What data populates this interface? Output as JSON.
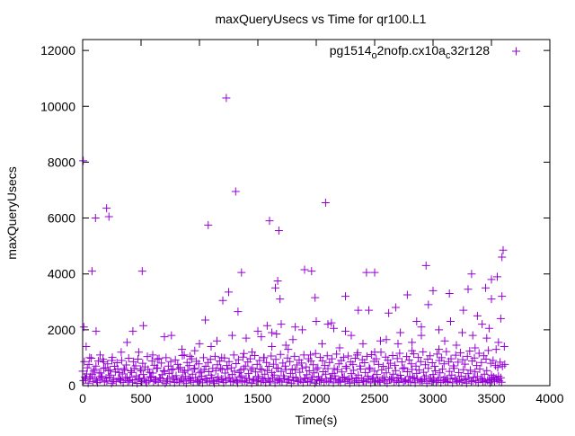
{
  "chart_data": {
    "type": "scatter",
    "title": "maxQueryUsecs vs Time for qr100.L1",
    "xlabel": "Time(s)",
    "ylabel": "maxQueryUsecs",
    "xlim": [
      0,
      4000
    ],
    "ylim": [
      0,
      12390
    ],
    "xticks": [
      0,
      500,
      1000,
      1500,
      2000,
      2500,
      3000,
      3500,
      4000
    ],
    "yticks": [
      0,
      2000,
      4000,
      6000,
      8000,
      10000,
      12000
    ],
    "grid": false,
    "legend_position": "top-right",
    "legend_parts": [
      "pg1514",
      "o",
      "2nofp.cx10a",
      "c",
      "32r128"
    ],
    "series": [
      {
        "name": "pg1514_o2nofp.cx10a_c32r128",
        "color": "#9400d3",
        "marker": "+",
        "dense_low": {
          "x_start": 0,
          "x_step": 20,
          "y_a": [
            520,
            310,
            640,
            250,
            410,
            580,
            190,
            460,
            330,
            620,
            270,
            540,
            380,
            150,
            490,
            600,
            230,
            420,
            560,
            300,
            180,
            470,
            610,
            350,
            260,
            530,
            400,
            170,
            580,
            320,
            450,
            210,
            630,
            280,
            390,
            510,
            160,
            440,
            570,
            240,
            360,
            600,
            200,
            480,
            330,
            550,
            270,
            410,
            620,
            190,
            460,
            340,
            580,
            250,
            500,
            380,
            170,
            540,
            310,
            620,
            230,
            450,
            590,
            280,
            400,
            520,
            180,
            470,
            350,
            610,
            260,
            430,
            560,
            200,
            490,
            330,
            600,
            270,
            410,
            540,
            160,
            470,
            380,
            630,
            240,
            510,
            350,
            580,
            210,
            440,
            300,
            560,
            190,
            480,
            620,
            270,
            390,
            530,
            230,
            460,
            580,
            320,
            180,
            500,
            410,
            610,
            260,
            440,
            350,
            570,
            200,
            490,
            310,
            620,
            240,
            430,
            550,
            280,
            380,
            600,
            170,
            470,
            340,
            590,
            250,
            520,
            400,
            180,
            560,
            300,
            460,
            630,
            220,
            410,
            540,
            290,
            370,
            610,
            190,
            500,
            330,
            580,
            260,
            440,
            560,
            210,
            480,
            350,
            620,
            270,
            400,
            530,
            180,
            460,
            590,
            310,
            240,
            510,
            380,
            620,
            200,
            470,
            340,
            570,
            260,
            430,
            550,
            180,
            490,
            320,
            600,
            250,
            410,
            540,
            220,
            380,
            300,
            260,
            340,
            280
          ],
          "y_b": [
            180,
            240,
            90,
            320,
            150,
            260,
            110,
            200,
            280,
            130,
            170,
            300,
            90,
            220,
            140,
            260,
            190,
            110,
            250,
            160,
            300,
            120,
            210,
            80,
            270,
            150,
            230,
            100,
            180,
            290,
            140,
            200,
            120,
            260,
            170,
            90,
            240,
            150,
            310,
            110,
            200,
            130,
            270,
            160,
            90,
            230,
            180,
            120,
            290,
            140,
            210,
            100,
            250,
            170,
            130,
            280,
            90,
            200,
            150,
            240,
            110,
            190,
            270,
            130,
            160,
            220,
            100,
            300,
            140,
            180,
            120,
            250,
            90,
            210,
            160,
            270,
            130,
            190,
            110,
            240,
            150,
            290,
            100,
            200,
            170,
            130,
            260,
            120,
            220,
            90,
            180,
            280,
            140,
            200,
            110,
            250,
            160,
            130,
            300,
            90,
            210,
            170,
            240,
            120,
            190,
            140,
            270,
            100,
            230,
            160,
            120,
            280,
            150,
            200,
            90,
            250,
            130,
            180,
            110,
            260,
            170,
            140,
            220,
            100,
            290,
            150,
            190,
            120,
            240,
            160,
            90,
            210,
            270,
            130,
            180,
            110,
            250,
            140,
            200,
            160,
            120,
            290,
            100,
            230,
            170,
            140,
            260,
            90,
            190,
            150,
            220,
            120,
            280,
            110,
            200,
            160,
            130,
            240,
            100,
            270,
            150,
            180,
            120,
            210,
            90,
            250,
            140,
            300,
            170,
            110,
            230,
            160,
            130,
            190,
            100,
            260,
            150,
            210,
            170,
            120
          ],
          "y_c": [
            860,
            420,
            760,
            980,
            520,
            700,
            880,
            450,
            940,
            640,
            780,
            560,
            1010,
            690,
            820,
            470,
            900,
            610,
            740,
            980,
            530,
            860,
            710,
            950,
            590,
            800,
            670,
            1040,
            480,
            880,
            730,
            620,
            970,
            810,
            540,
            1000,
            700,
            860,
            590,
            920,
            760,
            650,
            1080,
            540,
            830,
            720,
            960,
            600,
            870,
            780,
            510,
            1000,
            690,
            830,
            940,
            620,
            1050,
            750,
            880,
            580,
            990,
            720,
            860,
            640,
            1100,
            790,
            930,
            560,
            1020,
            700,
            850,
            960,
            630,
            1080,
            760,
            900,
            580,
            1000,
            830,
            690,
            1060,
            770,
            940,
            620,
            1120,
            810,
            700,
            990,
            860,
            600,
            1050,
            740,
            920,
            810,
            1100,
            670,
            960,
            880,
            750,
            1150,
            640,
            1010,
            890,
            720,
            1070,
            830,
            960,
            610,
            1130,
            780,
            900,
            1010,
            690,
            1060,
            850,
            760,
            980,
            1180,
            700,
            930,
            820,
            1050,
            640,
            1110,
            870,
            960,
            760,
            1200,
            690,
            1020,
            910,
            800,
            1080,
            730,
            970,
            1160,
            850,
            640,
            1040,
            920,
            780,
            1140,
            700,
            1010,
            860,
            1210,
            750,
            950,
            1070,
            820,
            690,
            1130,
            900,
            1000,
            780,
            1220,
            860,
            960,
            710,
            1090,
            840,
            1180,
            930,
            770,
            1050,
            1240,
            880,
            990,
            720,
            1160,
            830,
            1070,
            950,
            1260,
            800,
            900,
            720,
            650,
            840,
            700,
            760
          ]
        },
        "scattered": [
          [
            5,
            8050
          ],
          [
            10,
            2100
          ],
          [
            80,
            4100
          ],
          [
            110,
            6000
          ],
          [
            115,
            1950
          ],
          [
            205,
            6350
          ],
          [
            225,
            6050
          ],
          [
            510,
            4100
          ],
          [
            1075,
            5750
          ],
          [
            1230,
            10300
          ],
          [
            1310,
            6950
          ],
          [
            1360,
            4050
          ],
          [
            1600,
            5900
          ],
          [
            1680,
            5550
          ],
          [
            2080,
            6550
          ],
          [
            1670,
            3750
          ],
          [
            1650,
            3500
          ],
          [
            1690,
            3100
          ],
          [
            1900,
            4150
          ],
          [
            1960,
            4100
          ],
          [
            1990,
            3150
          ],
          [
            2430,
            4050
          ],
          [
            2500,
            4050
          ],
          [
            2940,
            4300
          ],
          [
            3500,
            3800
          ],
          [
            3550,
            3900
          ],
          [
            3590,
            4600
          ],
          [
            3600,
            4850
          ],
          [
            3330,
            4000
          ],
          [
            3140,
            3300
          ],
          [
            1200,
            3050
          ],
          [
            1250,
            3350
          ],
          [
            3590,
            3200
          ],
          [
            3000,
            3400
          ],
          [
            3450,
            3500
          ],
          [
            30,
            1400
          ],
          [
            60,
            1000
          ],
          [
            150,
            1100
          ],
          [
            250,
            900
          ],
          [
            330,
            1200
          ],
          [
            380,
            1550
          ],
          [
            430,
            1950
          ],
          [
            480,
            1200
          ],
          [
            520,
            2150
          ],
          [
            600,
            1100
          ],
          [
            700,
            1750
          ],
          [
            760,
            1800
          ],
          [
            850,
            1300
          ],
          [
            920,
            1050
          ],
          [
            1000,
            1500
          ],
          [
            1050,
            2350
          ],
          [
            1100,
            1400
          ],
          [
            1150,
            1600
          ],
          [
            1190,
            1000
          ],
          [
            1280,
            1800
          ],
          [
            1330,
            2650
          ],
          [
            1400,
            1700
          ],
          [
            1450,
            1200
          ],
          [
            1500,
            1950
          ],
          [
            1550,
            1000
          ],
          [
            1620,
            1900
          ],
          [
            1660,
            1850
          ],
          [
            1700,
            2200
          ],
          [
            1760,
            1300
          ],
          [
            1820,
            2100
          ],
          [
            1880,
            2000
          ],
          [
            1950,
            1100
          ],
          [
            2000,
            2300
          ],
          [
            2050,
            1500
          ],
          [
            2100,
            2200
          ],
          [
            2150,
            2050
          ],
          [
            2200,
            1350
          ],
          [
            2250,
            3200
          ],
          [
            2300,
            1800
          ],
          [
            2360,
            2700
          ],
          [
            2400,
            1500
          ],
          [
            2450,
            2700
          ],
          [
            2500,
            1200
          ],
          [
            2550,
            1600
          ],
          [
            2620,
            2600
          ],
          [
            2680,
            2800
          ],
          [
            2720,
            1900
          ],
          [
            2780,
            3250
          ],
          [
            2820,
            1550
          ],
          [
            2860,
            2300
          ],
          [
            2900,
            1800
          ],
          [
            2960,
            2900
          ],
          [
            3050,
            2000
          ],
          [
            3100,
            1600
          ],
          [
            3150,
            2300
          ],
          [
            3200,
            1450
          ],
          [
            3260,
            2700
          ],
          [
            3300,
            3450
          ],
          [
            3340,
            1800
          ],
          [
            3380,
            2500
          ],
          [
            3420,
            2200
          ],
          [
            3460,
            1700
          ],
          [
            3500,
            3100
          ],
          [
            3540,
            1300
          ],
          [
            3580,
            2400
          ],
          [
            3610,
            1400
          ],
          [
            1800,
            1650
          ],
          [
            2700,
            1500
          ],
          [
            3360,
            1350
          ],
          [
            870,
            1100
          ],
          [
            640,
            950
          ],
          [
            180,
            850
          ],
          [
            2820,
            1250
          ],
          [
            3050,
            1300
          ],
          [
            2350,
            1100
          ],
          [
            1530,
            1750
          ],
          [
            1580,
            2150
          ],
          [
            1620,
            1400
          ],
          [
            2250,
            1950
          ],
          [
            2600,
            1650
          ],
          [
            2900,
            2100
          ],
          [
            3250,
            1900
          ],
          [
            3480,
            2050
          ],
          [
            3560,
            1550
          ],
          [
            2130,
            2250
          ],
          [
            1740,
            1450
          ],
          [
            960,
            1250
          ],
          [
            1380,
            1150
          ]
        ]
      }
    ]
  }
}
